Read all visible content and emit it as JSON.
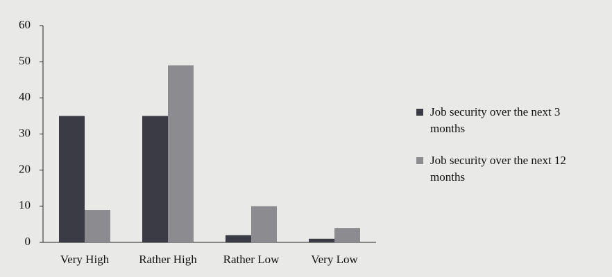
{
  "chart_data": {
    "type": "bar",
    "categories": [
      "Very High",
      "Rather High",
      "Rather Low",
      "Very Low"
    ],
    "series": [
      {
        "name": "Job security over the next 3 months",
        "color": "#3b3b45",
        "values": [
          35,
          35,
          2,
          1
        ]
      },
      {
        "name": "Job security over the next 12 months",
        "color": "#8c8c90",
        "values": [
          9,
          49,
          10,
          4
        ]
      }
    ],
    "ylim": [
      0,
      60
    ],
    "yticks": [
      0,
      10,
      20,
      30,
      40,
      50,
      60
    ],
    "grid": false,
    "legend": "right"
  }
}
